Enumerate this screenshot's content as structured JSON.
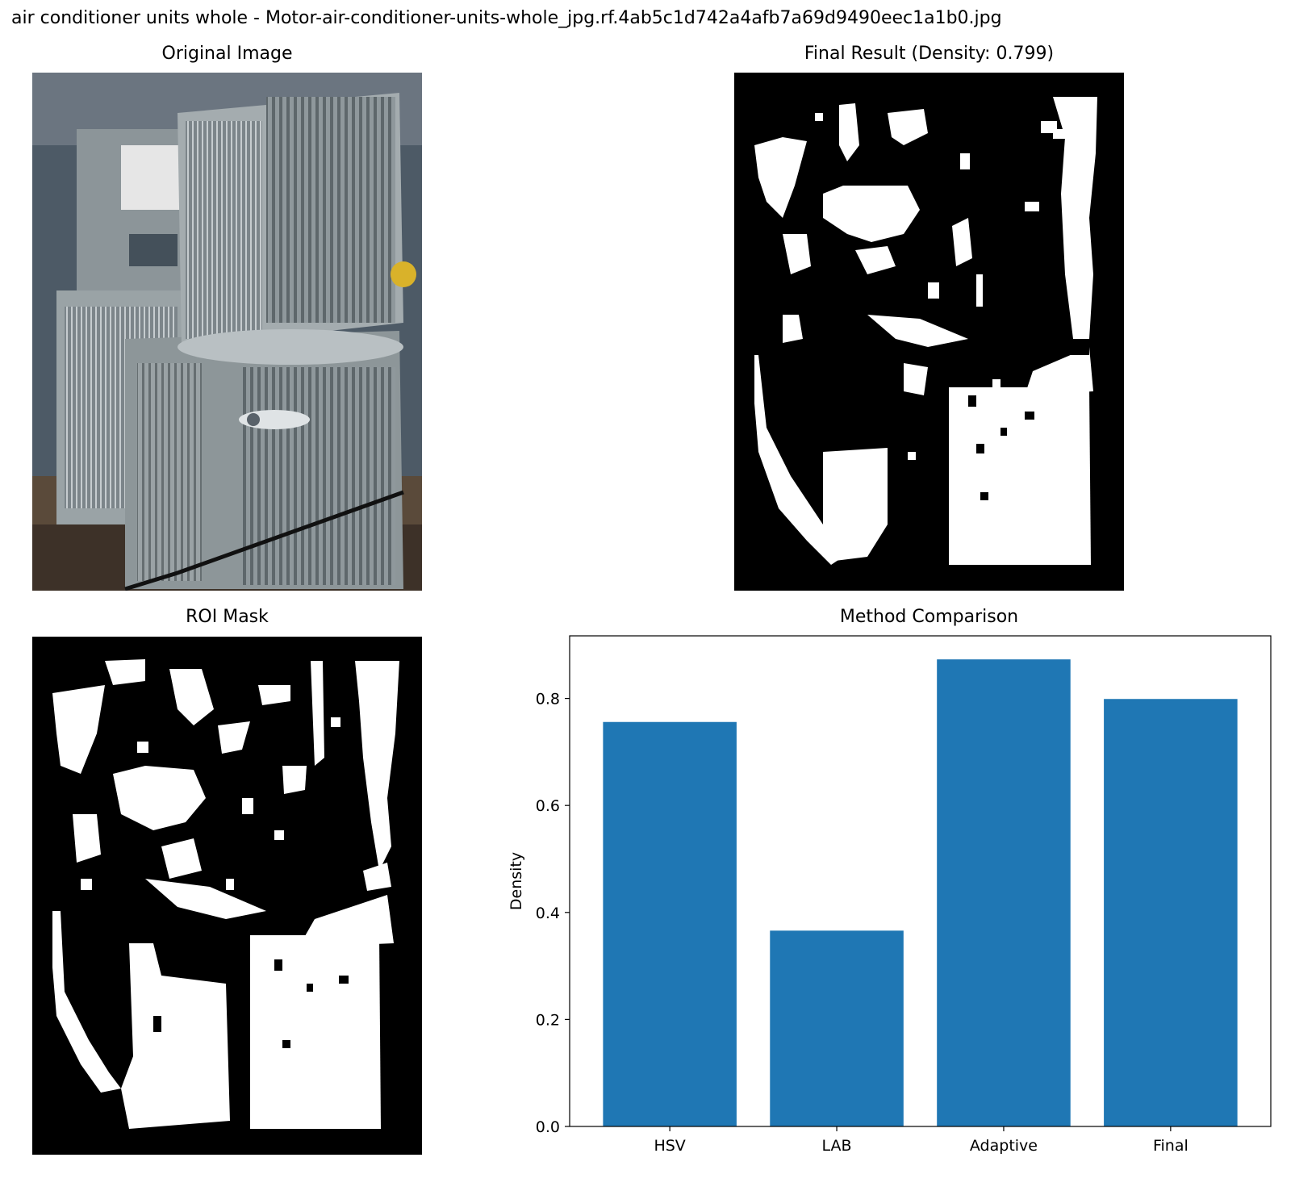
{
  "figure": {
    "suptitle": "air conditioner units whole - Motor-air-conditioner-units-whole_jpg.rf.4ab5c1d742a4afb7a69d9490eec1a1b0.jpg"
  },
  "panels": {
    "original": {
      "title": "Original Image"
    },
    "final": {
      "title": "Final Result (Density: 0.799)"
    },
    "roi": {
      "title": "ROI Mask"
    },
    "comparison": {
      "title": "Method Comparison"
    }
  },
  "chart_data": {
    "type": "bar",
    "title": "Method Comparison",
    "xlabel": "",
    "ylabel": "Density",
    "categories": [
      "HSV",
      "LAB",
      "Adaptive",
      "Final"
    ],
    "values": [
      0.756,
      0.366,
      0.873,
      0.799
    ],
    "ylim": [
      0,
      0.917
    ],
    "yticks": [
      "0.0",
      "0.2",
      "0.4",
      "0.6",
      "0.8"
    ],
    "bar_color": "#1f77b4",
    "grid": false
  }
}
